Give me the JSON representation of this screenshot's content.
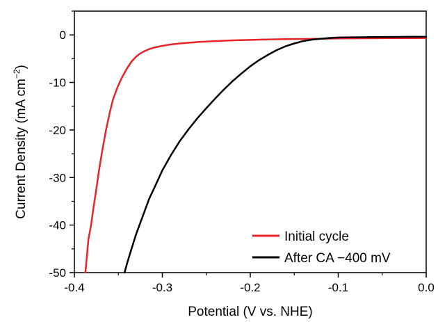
{
  "chart_data": {
    "type": "line",
    "title": "",
    "xlabel": "Potential (V vs. NHE)",
    "ylabel": {
      "main": "Current Density (mA cm",
      "sup": "−2",
      "close": ")"
    },
    "xlim": [
      -0.4,
      0.0
    ],
    "ylim": [
      -50,
      5
    ],
    "xticks": [
      -0.4,
      -0.3,
      -0.2,
      -0.1,
      0.0
    ],
    "xtick_labels": [
      "-0.4",
      "-0.3",
      "-0.2",
      "-0.1",
      "0.0"
    ],
    "yticks": [
      0,
      -10,
      -20,
      -30,
      -40,
      -50
    ],
    "ytick_labels": [
      "0",
      "-10",
      "-20",
      "-30",
      "-40",
      "-50"
    ],
    "grid": false,
    "legend_position": "bottom-right",
    "series": [
      {
        "name": "Initial cycle",
        "color": "#e8232a",
        "x": [
          -0.3875,
          -0.386,
          -0.384,
          -0.381,
          -0.378,
          -0.3755,
          -0.372,
          -0.368,
          -0.364,
          -0.36,
          -0.356,
          -0.351,
          -0.346,
          -0.34,
          -0.335,
          -0.33,
          -0.325,
          -0.32,
          -0.315,
          -0.31,
          -0.3,
          -0.29,
          -0.28,
          -0.27,
          -0.26,
          -0.25,
          -0.24,
          -0.22,
          -0.2,
          -0.18,
          -0.16,
          -0.14,
          -0.12,
          -0.1,
          -0.08,
          -0.06,
          -0.04,
          -0.02,
          0.0
        ],
        "y": [
          -50.0,
          -47.0,
          -43.0,
          -40.0,
          -36.0,
          -33.0,
          -28.5,
          -24.0,
          -20.0,
          -16.5,
          -13.5,
          -11.0,
          -9.0,
          -7.0,
          -5.6,
          -4.6,
          -3.9,
          -3.4,
          -3.0,
          -2.7,
          -2.3,
          -2.0,
          -1.8,
          -1.65,
          -1.5,
          -1.4,
          -1.3,
          -1.15,
          -1.05,
          -0.95,
          -0.9,
          -0.85,
          -0.8,
          -0.75,
          -0.72,
          -0.7,
          -0.68,
          -0.66,
          -0.65
        ]
      },
      {
        "name": "After CA −400 mV",
        "color": "#000000",
        "x": [
          -0.343,
          -0.34,
          -0.335,
          -0.33,
          -0.325,
          -0.32,
          -0.315,
          -0.31,
          -0.305,
          -0.3,
          -0.29,
          -0.28,
          -0.27,
          -0.26,
          -0.25,
          -0.24,
          -0.23,
          -0.22,
          -0.21,
          -0.2,
          -0.19,
          -0.18,
          -0.17,
          -0.16,
          -0.15,
          -0.14,
          -0.13,
          -0.12,
          -0.11,
          -0.1,
          -0.08,
          -0.06,
          -0.04,
          -0.02,
          0.0
        ],
        "y": [
          -50.0,
          -48.0,
          -45.0,
          -42.0,
          -39.5,
          -37.0,
          -34.5,
          -32.5,
          -30.5,
          -28.5,
          -25.2,
          -22.3,
          -19.8,
          -17.5,
          -15.4,
          -13.4,
          -11.5,
          -9.7,
          -8.1,
          -6.6,
          -5.3,
          -4.2,
          -3.2,
          -2.4,
          -1.8,
          -1.3,
          -1.0,
          -0.8,
          -0.65,
          -0.55,
          -0.5,
          -0.45,
          -0.42,
          -0.4,
          -0.4
        ]
      }
    ]
  }
}
